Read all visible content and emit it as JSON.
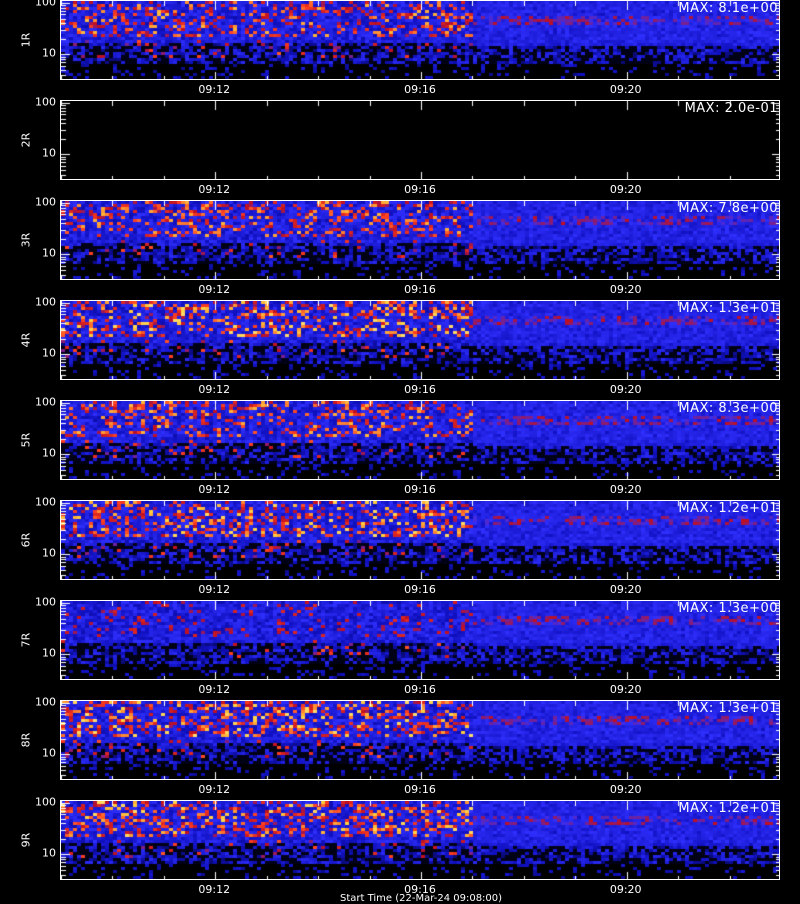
{
  "chart_data": {
    "type": "heatmap",
    "x_tick_labels": [
      "09:12",
      "09:16",
      "09:20"
    ],
    "x_ticks": [
      "09:12",
      "09:16",
      "09:20"
    ],
    "xlim": [
      "09:09",
      "09:23"
    ],
    "y_scale": "log",
    "ylim": [
      3,
      110
    ],
    "y_tick_labels": [
      "100",
      "10"
    ],
    "y_ticks": [
      100,
      10
    ],
    "colormap": [
      "#000000",
      "#1010c0",
      "#3030ff",
      "#c01020",
      "#ff4020",
      "#ffd040",
      "#ffffff"
    ],
    "data_change_time": "09:17",
    "panels": [
      {
        "label": "1R",
        "max_label": "MAX: 8.1e+00",
        "max": 8.1,
        "rows": [
          12,
          80
        ],
        "offset": 0.0
      },
      {
        "label": "2R",
        "max_label": "MAX: 2.0e-01",
        "max": 0.2,
        "rows": [],
        "offset": 0.0
      },
      {
        "label": "3R",
        "max_label": "MAX: 7.8e+00",
        "max": 7.8,
        "rows": [
          10,
          100
        ],
        "offset": 0.0
      },
      {
        "label": "4R",
        "max_label": "MAX: 1.3e+01",
        "max": 13,
        "rows": [
          10,
          100
        ],
        "offset": 0.0
      },
      {
        "label": "5R",
        "max_label": "MAX: 8.3e+00",
        "max": 8.3,
        "rows": [
          10,
          100
        ],
        "offset": 0.0
      },
      {
        "label": "6R",
        "max_label": "MAX: 1.2e+01",
        "max": 12,
        "rows": [
          10,
          100
        ],
        "offset": 0.0
      },
      {
        "label": "7R",
        "max_label": "MAX: 1.3e+00",
        "max": 1.3,
        "rows": [
          8,
          100
        ],
        "offset": 0.0
      },
      {
        "label": "8R",
        "max_label": "MAX: 1.3e+01",
        "max": 13,
        "rows": [
          10,
          100
        ],
        "offset": 0.0
      },
      {
        "label": "9R",
        "max_label": "MAX: 1.2e+01",
        "max": 12,
        "rows": [
          10,
          100
        ],
        "offset": 0.0
      }
    ],
    "bottom_text": "Start Time (22-Mar-24 09:08:00)"
  }
}
